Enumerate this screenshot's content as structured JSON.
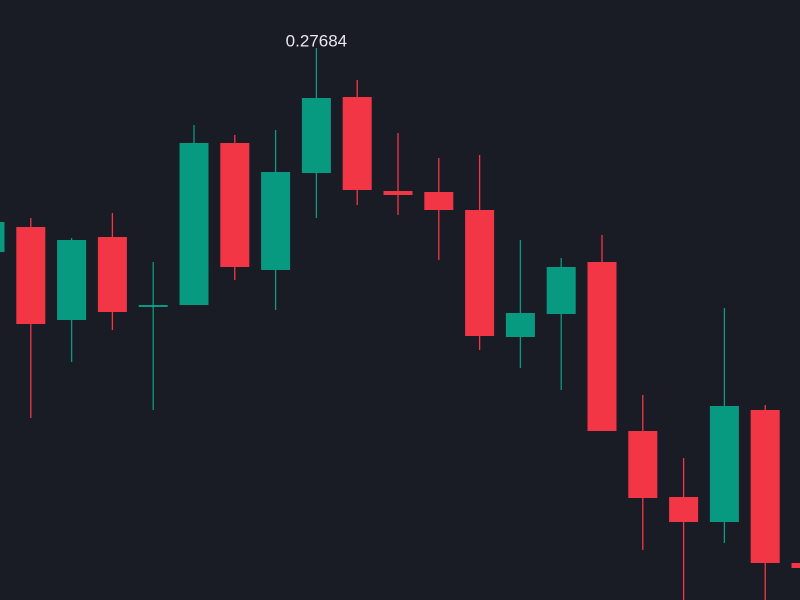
{
  "chart_data": {
    "type": "candlestick",
    "open": [
      0.27276,
      0.27326,
      0.2714,
      0.27306,
      0.27166,
      0.2717,
      0.27494,
      0.2724,
      0.27434,
      0.27586,
      0.27398,
      0.27396,
      0.2736,
      0.27106,
      0.27152,
      0.27256,
      0.26918,
      0.26786,
      0.26736,
      0.2696,
      0.26654
    ],
    "high": [
      0.2735,
      0.27344,
      0.27304,
      0.27354,
      0.27256,
      0.2753,
      0.2751,
      0.2752,
      0.27684,
      0.2762,
      0.27514,
      0.27464,
      0.2747,
      0.273,
      0.27264,
      0.2731,
      0.2699,
      0.26864,
      0.27164,
      0.2697,
      0.2666
    ],
    "low": [
      0.27264,
      0.26944,
      0.27056,
      0.2712,
      0.2696,
      0.2717,
      0.2722,
      0.2716,
      0.27344,
      0.2737,
      0.2735,
      0.2726,
      0.2708,
      0.27044,
      0.27,
      0.26918,
      0.2668,
      0.2656,
      0.26694,
      0.2654,
      0.2658
    ],
    "close": [
      0.27336,
      0.27132,
      0.273,
      0.27156,
      0.2717,
      0.27494,
      0.27246,
      0.27436,
      0.27584,
      0.274,
      0.2739,
      0.2736,
      0.27108,
      0.27154,
      0.27246,
      0.26918,
      0.26784,
      0.26736,
      0.26968,
      0.26654,
      0.26644
    ],
    "up_color": "#089981",
    "down_color": "#f23645",
    "ylim": [
      0.2658,
      0.2778
    ]
  }
}
